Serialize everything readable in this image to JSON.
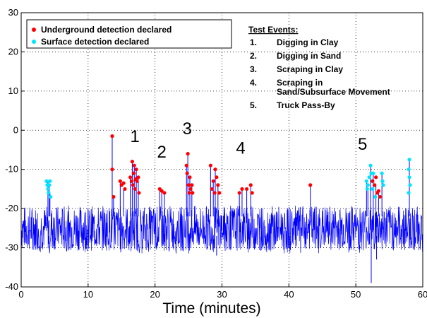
{
  "chart_data": {
    "type": "line",
    "xlabel": "Time (minutes)",
    "ylabel": "",
    "xlim": [
      0,
      60
    ],
    "ylim": [
      -40,
      30
    ],
    "xticks": [
      0,
      10,
      20,
      30,
      40,
      50,
      60
    ],
    "yticks": [
      30,
      20,
      10,
      0,
      -10,
      -20,
      -30,
      -40
    ],
    "grid": true,
    "noise_band": {
      "center": -25,
      "low": -30,
      "high": -20
    },
    "series": [
      {
        "name": "",
        "color": "#0000ff"
      }
    ],
    "spikes": [
      [
        4.0,
        -13
      ],
      [
        4.2,
        -14
      ],
      [
        4.3,
        -16
      ],
      [
        13.6,
        -1.5
      ],
      [
        13.8,
        -17
      ],
      [
        14.8,
        -13
      ],
      [
        15.3,
        -15
      ],
      [
        16.3,
        -12
      ],
      [
        16.6,
        -8
      ],
      [
        16.9,
        -9
      ],
      [
        17.2,
        -10
      ],
      [
        17.5,
        -12
      ],
      [
        20.7,
        -15
      ],
      [
        21.0,
        -15.5
      ],
      [
        21.4,
        -16
      ],
      [
        24.7,
        -9
      ],
      [
        24.9,
        -6
      ],
      [
        25.2,
        -12
      ],
      [
        25.5,
        -14
      ],
      [
        28.3,
        -9
      ],
      [
        28.7,
        -13
      ],
      [
        29.0,
        -10
      ],
      [
        29.4,
        -14
      ],
      [
        32.6,
        -16
      ],
      [
        33.0,
        -15
      ],
      [
        33.7,
        -15
      ],
      [
        34.3,
        -14
      ],
      [
        43.2,
        -14
      ],
      [
        51.6,
        -13
      ],
      [
        51.8,
        -15
      ],
      [
        52.2,
        -9
      ],
      [
        52.6,
        -11
      ],
      [
        53.0,
        -14
      ],
      [
        53.4,
        -16
      ],
      [
        53.9,
        -11
      ],
      [
        58.0,
        -7.5
      ]
    ],
    "dips": [
      [
        4.1,
        -29
      ],
      [
        29.2,
        -32
      ],
      [
        52.3,
        -39
      ],
      [
        53.1,
        -33
      ]
    ],
    "detections": {
      "underground": {
        "label": "Underground detection declared",
        "color": "#ff0000",
        "points": [
          [
            13.6,
            -1.5
          ],
          [
            13.6,
            -10
          ],
          [
            13.8,
            -17
          ],
          [
            14.8,
            -13
          ],
          [
            15.0,
            -14
          ],
          [
            15.3,
            -13.5
          ],
          [
            15.5,
            -15
          ],
          [
            16.3,
            -12
          ],
          [
            16.5,
            -13
          ],
          [
            16.6,
            -8
          ],
          [
            16.7,
            -14
          ],
          [
            16.8,
            -11
          ],
          [
            16.9,
            -9
          ],
          [
            17.0,
            -15
          ],
          [
            17.1,
            -12.5
          ],
          [
            17.2,
            -10
          ],
          [
            17.3,
            -13
          ],
          [
            17.5,
            -12
          ],
          [
            17.6,
            -16
          ],
          [
            20.7,
            -15
          ],
          [
            21.0,
            -15.5
          ],
          [
            21.4,
            -16
          ],
          [
            24.7,
            -9
          ],
          [
            24.8,
            -11
          ],
          [
            24.9,
            -6
          ],
          [
            25.0,
            -14
          ],
          [
            25.1,
            -16
          ],
          [
            25.2,
            -12
          ],
          [
            25.3,
            -15
          ],
          [
            25.5,
            -14
          ],
          [
            25.6,
            -16
          ],
          [
            28.3,
            -9
          ],
          [
            28.5,
            -15
          ],
          [
            28.7,
            -13
          ],
          [
            28.9,
            -16
          ],
          [
            29.0,
            -10
          ],
          [
            29.2,
            -12
          ],
          [
            29.4,
            -14
          ],
          [
            29.6,
            -16
          ],
          [
            32.6,
            -16
          ],
          [
            33.0,
            -15
          ],
          [
            33.7,
            -15
          ],
          [
            34.3,
            -14
          ],
          [
            34.5,
            -16
          ],
          [
            43.2,
            -14
          ],
          [
            52.5,
            -13
          ],
          [
            52.8,
            -14
          ],
          [
            53.0,
            -12
          ],
          [
            53.2,
            -16
          ],
          [
            53.4,
            -15.5
          ],
          [
            53.6,
            -17
          ]
        ]
      },
      "surface": {
        "label": "Surface detection declared",
        "color": "#00e5ff",
        "points": [
          [
            3.8,
            -13
          ],
          [
            3.9,
            -14
          ],
          [
            4.0,
            -15
          ],
          [
            4.1,
            -16
          ],
          [
            4.2,
            -14
          ],
          [
            4.3,
            -13
          ],
          [
            4.4,
            -17
          ],
          [
            51.6,
            -13
          ],
          [
            51.7,
            -15
          ],
          [
            51.8,
            -14
          ],
          [
            52.0,
            -12
          ],
          [
            52.2,
            -9
          ],
          [
            52.3,
            -11
          ],
          [
            52.5,
            -15
          ],
          [
            52.6,
            -11
          ],
          [
            52.9,
            -17
          ],
          [
            53.9,
            -11
          ],
          [
            54.0,
            -13
          ],
          [
            54.1,
            -14
          ],
          [
            58.0,
            -7.5
          ],
          [
            57.9,
            -10
          ],
          [
            58.0,
            -12
          ],
          [
            58.1,
            -14
          ],
          [
            57.9,
            -16
          ]
        ]
      }
    },
    "annotations": [
      {
        "text": "1",
        "x": 17.0,
        "y": -3
      },
      {
        "text": "2",
        "x": 21.0,
        "y": -7
      },
      {
        "text": "3",
        "x": 24.8,
        "y": -1
      },
      {
        "text": "4",
        "x": 32.8,
        "y": -6
      },
      {
        "text": "5",
        "x": 51.0,
        "y": -5
      }
    ],
    "legend_position": "top-left",
    "test_events": {
      "title": "Test Events:",
      "items": [
        {
          "num": "1.",
          "text": [
            "Digging in Clay"
          ]
        },
        {
          "num": "2.",
          "text": [
            "Digging in Sand"
          ]
        },
        {
          "num": "3.",
          "text": [
            "Scraping in Clay"
          ]
        },
        {
          "num": "4.",
          "text": [
            "Scraping in",
            "Sand/Subsurface Movement"
          ]
        },
        {
          "num": "5.",
          "text": [
            "Truck Pass-By"
          ]
        }
      ]
    }
  }
}
